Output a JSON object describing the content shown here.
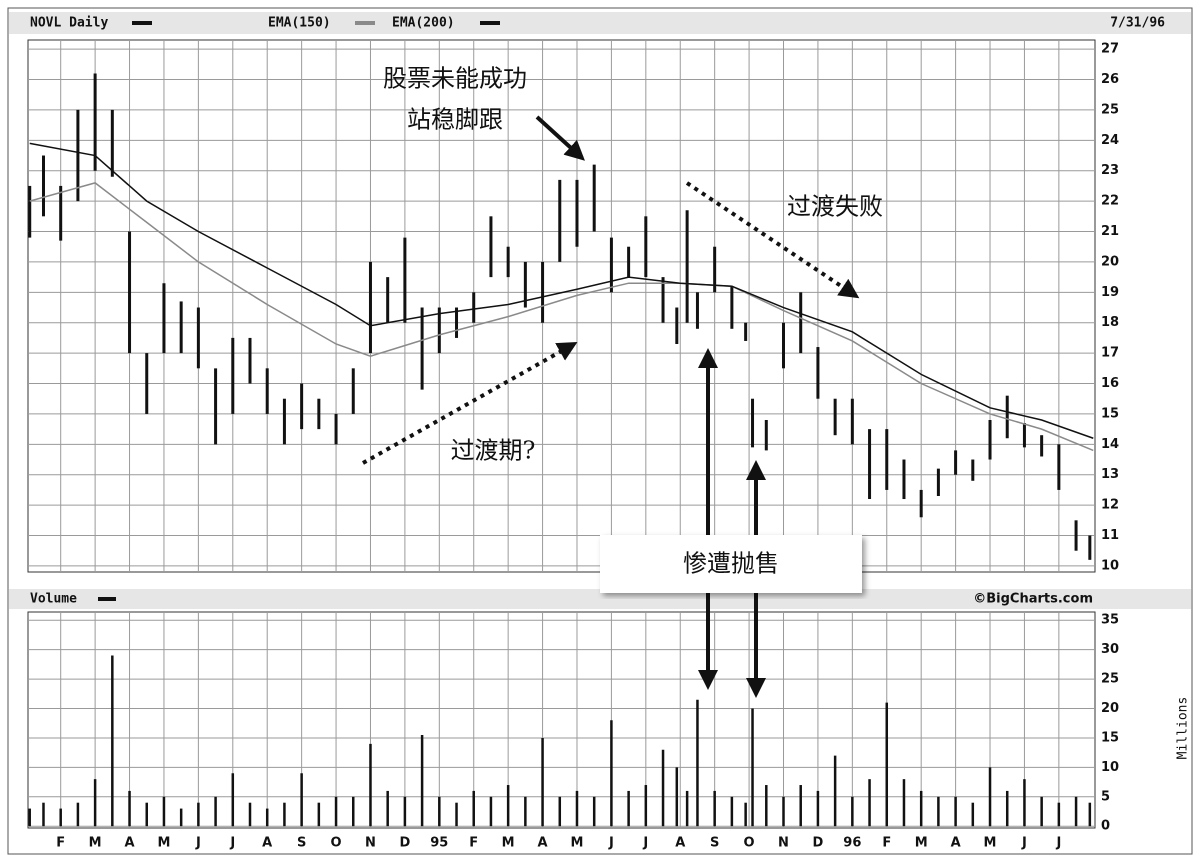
{
  "chart_data": [
    {
      "type": "range-bar",
      "date": "7/31/96",
      "x": [
        -0.9,
        -0.5,
        0,
        0.5,
        1,
        1.5,
        2,
        2.5,
        3,
        3.5,
        4,
        4.5,
        5,
        5.5,
        6,
        6.5,
        7,
        7.5,
        8,
        8.5,
        9,
        9.5,
        10,
        10.5,
        11,
        11.5,
        12,
        12.5,
        13,
        13.5,
        14,
        14.5,
        15,
        15.5,
        16,
        16.5,
        17,
        17.5,
        17.9,
        18.2,
        18.5,
        19,
        19.5,
        19.9,
        20.1,
        20.5,
        21,
        21.5,
        22,
        22.5,
        23,
        23.5,
        24,
        24.5,
        25,
        25.5,
        26,
        26.5,
        27,
        27.5,
        28,
        28.5,
        29,
        29.5,
        29.9
      ],
      "series": [
        {
          "name": "NOVL Daily",
          "color": "#111111",
          "low": [
            20.8,
            21.5,
            20.7,
            22,
            23,
            22.8,
            17,
            15,
            17,
            17,
            16.5,
            14,
            15,
            16,
            15,
            14,
            14.5,
            14.5,
            14,
            15,
            17,
            18,
            18,
            15.8,
            17,
            17.5,
            18,
            19.5,
            19.5,
            18.5,
            18,
            20,
            20.5,
            21,
            19,
            19.5,
            19.5,
            18,
            17.3,
            18,
            17.8,
            19,
            17.8,
            17.4,
            13.9,
            13.8,
            16.5,
            17,
            15.5,
            14.3,
            14,
            12.2,
            12.5,
            12.2,
            11.6,
            12.3,
            13,
            12.8,
            13.5,
            14.2,
            13.9,
            13.6,
            12.5,
            10.5,
            10.2
          ],
          "high": [
            22.5,
            23.5,
            22.5,
            25,
            26.2,
            25,
            21,
            17,
            19.3,
            18.7,
            18.5,
            16.5,
            17.5,
            17.5,
            16.5,
            15.5,
            16,
            15.5,
            15,
            16.5,
            20,
            19.5,
            20.8,
            18.5,
            18.5,
            18.5,
            19,
            21.5,
            20.5,
            20,
            20,
            22.7,
            22.7,
            23.2,
            20.8,
            20.5,
            21.5,
            19.5,
            18.5,
            21.7,
            19,
            20.5,
            19.2,
            18,
            15.5,
            14.8,
            18,
            19,
            17.2,
            15.5,
            15.5,
            14.5,
            14.5,
            13.5,
            12.5,
            13.2,
            13.8,
            13.5,
            14.8,
            15.6,
            14.7,
            14.3,
            14,
            11.5,
            11
          ]
        }
      ],
      "lines": [
        {
          "name": "EMA(150)",
          "color": "#8a8a8a",
          "x": [
            -0.9,
            1,
            2.5,
            4,
            6,
            8,
            9,
            11,
            13,
            15,
            16.5,
            18,
            19.5,
            21,
            23,
            25,
            27,
            28.5,
            30
          ],
          "values": [
            22.0,
            22.6,
            21.3,
            20.0,
            18.6,
            17.3,
            16.9,
            17.6,
            18.2,
            18.9,
            19.3,
            19.3,
            19.2,
            18.4,
            17.4,
            16.0,
            15.0,
            14.5,
            13.8
          ]
        },
        {
          "name": "EMA(200)",
          "color": "#111111",
          "x": [
            -0.9,
            1,
            2.5,
            4,
            6,
            8,
            9,
            11,
            13,
            15,
            16.5,
            18,
            19.5,
            21,
            23,
            25,
            27,
            28.5,
            30
          ],
          "values": [
            23.9,
            23.5,
            22.0,
            21.0,
            19.8,
            18.6,
            17.9,
            18.3,
            18.6,
            19.1,
            19.5,
            19.3,
            19.2,
            18.5,
            17.7,
            16.3,
            15.2,
            14.8,
            14.2
          ]
        }
      ],
      "xlim": [
        -0.95,
        30.05
      ],
      "ylim": [
        9.8,
        27.3
      ],
      "yticks": [
        10,
        11,
        12,
        13,
        14,
        15,
        16,
        17,
        18,
        19,
        20,
        21,
        22,
        23,
        24,
        25,
        26,
        27
      ],
      "grid": true,
      "annotations": [
        "股票未能成功",
        "站稳脚跟",
        "过渡失败",
        "过渡期?",
        "惨遭抛售"
      ]
    },
    {
      "type": "bar",
      "title": "Volume",
      "source": "©BigCharts.com",
      "y_label": "Millions",
      "color": "#111111",
      "x": [
        -0.9,
        -0.5,
        0,
        0.5,
        1,
        1.5,
        2,
        2.5,
        3,
        3.5,
        4,
        4.5,
        5,
        5.5,
        6,
        6.5,
        7,
        7.5,
        8,
        8.5,
        9,
        9.5,
        10,
        10.5,
        11,
        11.5,
        12,
        12.5,
        13,
        13.5,
        14,
        14.5,
        15,
        15.5,
        16,
        16.5,
        17,
        17.5,
        17.9,
        18.2,
        18.5,
        19,
        19.5,
        19.9,
        20.1,
        20.5,
        21,
        21.5,
        22,
        22.5,
        23,
        23.5,
        24,
        24.5,
        25,
        25.5,
        26,
        26.5,
        27,
        27.5,
        28,
        28.5,
        29,
        29.5,
        29.9
      ],
      "values": [
        3,
        4,
        3,
        4,
        8,
        29,
        6,
        4,
        5,
        3,
        4,
        5,
        9,
        4,
        3,
        4,
        9,
        4,
        5,
        5,
        14,
        6,
        5,
        15.5,
        5,
        4,
        6,
        5,
        7,
        5,
        15,
        5,
        6,
        5,
        18,
        6,
        7,
        13,
        10,
        6,
        21.5,
        6,
        5,
        4,
        20,
        7,
        5,
        7,
        6,
        12,
        5,
        8,
        21,
        8,
        6,
        5,
        5,
        4,
        10,
        6,
        8,
        5,
        4,
        5,
        4
      ],
      "xlim": [
        -0.95,
        30.05
      ],
      "ylim": [
        -0.3,
        36.4
      ],
      "yticks": [
        0,
        5,
        10,
        15,
        20,
        25,
        30,
        35
      ],
      "xticks": [
        {
          "value": 0,
          "label": "F"
        },
        {
          "value": 1,
          "label": "M"
        },
        {
          "value": 2,
          "label": "A"
        },
        {
          "value": 3,
          "label": "M"
        },
        {
          "value": 4,
          "label": "J"
        },
        {
          "value": 5,
          "label": "J"
        },
        {
          "value": 6,
          "label": "A"
        },
        {
          "value": 7,
          "label": "S"
        },
        {
          "value": 8,
          "label": "O"
        },
        {
          "value": 9,
          "label": "N"
        },
        {
          "value": 10,
          "label": "D"
        },
        {
          "value": 11,
          "label": "95"
        },
        {
          "value": 12,
          "label": "F"
        },
        {
          "value": 13,
          "label": "M"
        },
        {
          "value": 14,
          "label": "A"
        },
        {
          "value": 15,
          "label": "M"
        },
        {
          "value": 16,
          "label": "J"
        },
        {
          "value": 17,
          "label": "J"
        },
        {
          "value": 18,
          "label": "A"
        },
        {
          "value": 19,
          "label": "S"
        },
        {
          "value": 20,
          "label": "O"
        },
        {
          "value": 21,
          "label": "N"
        },
        {
          "value": 22,
          "label": "D"
        },
        {
          "value": 23,
          "label": "96"
        },
        {
          "value": 24,
          "label": "F"
        },
        {
          "value": 25,
          "label": "M"
        },
        {
          "value": 26,
          "label": "A"
        },
        {
          "value": 27,
          "label": "M"
        },
        {
          "value": 28,
          "label": "J"
        },
        {
          "value": 29,
          "label": "J"
        }
      ]
    }
  ]
}
